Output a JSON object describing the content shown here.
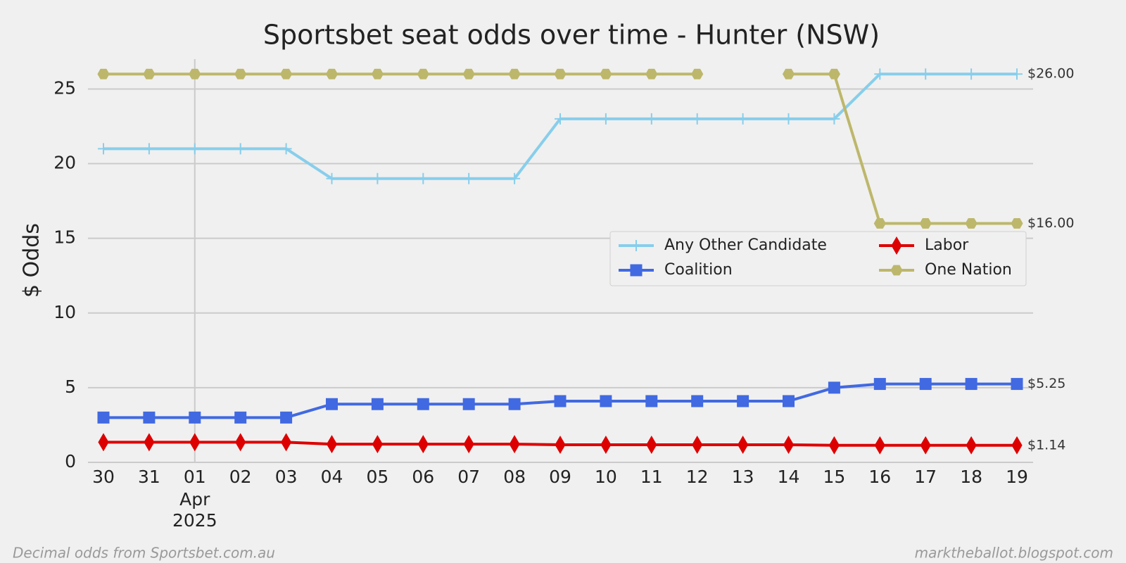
{
  "chart_data": {
    "type": "line",
    "title": "Sportsbet seat odds over time - Hunter (NSW)",
    "y_label": "$ Odds",
    "categories": [
      "30",
      "31",
      "01",
      "02",
      "03",
      "04",
      "05",
      "06",
      "07",
      "08",
      "09",
      "10",
      "11",
      "12",
      "13",
      "14",
      "15",
      "16",
      "17",
      "18",
      "19"
    ],
    "category_sublabels": [
      null,
      null,
      "Apr\n2025",
      null,
      null,
      null,
      null,
      null,
      null,
      null,
      null,
      null,
      null,
      null,
      null,
      null,
      null,
      null,
      null,
      null,
      null
    ],
    "ylim": [
      0,
      27
    ],
    "yticks": [
      0,
      5,
      10,
      15,
      20,
      25
    ],
    "grid": true,
    "legend": "center right",
    "series": [
      {
        "name": "Any Other Candidate",
        "color": "#87ceeb",
        "marker": "plus",
        "values": [
          21,
          21,
          21,
          21,
          21,
          19,
          19,
          19,
          19,
          19,
          23,
          23,
          23,
          23,
          23,
          23,
          23,
          26,
          26,
          26,
          26
        ],
        "value_labels": [
          null,
          null,
          null,
          null,
          null,
          null,
          null,
          null,
          null,
          null,
          null,
          null,
          null,
          null,
          null,
          null,
          null,
          null,
          null,
          null,
          "$26.00"
        ]
      },
      {
        "name": "Coalition",
        "color": "#4169e1",
        "marker": "square",
        "values": [
          3.0,
          3.0,
          3.0,
          3.0,
          3.0,
          3.9,
          3.9,
          3.9,
          3.9,
          3.9,
          4.1,
          4.1,
          4.1,
          4.1,
          4.1,
          4.1,
          5.0,
          5.25,
          5.25,
          5.25,
          5.25
        ],
        "value_labels": [
          null,
          null,
          null,
          null,
          null,
          null,
          null,
          null,
          null,
          null,
          null,
          null,
          null,
          null,
          null,
          null,
          null,
          null,
          null,
          null,
          "$5.25"
        ]
      },
      {
        "name": "Labor",
        "color": "#dd0000",
        "marker": "diamond",
        "values": [
          1.35,
          1.35,
          1.35,
          1.35,
          1.35,
          1.22,
          1.22,
          1.22,
          1.22,
          1.22,
          1.18,
          1.18,
          1.18,
          1.18,
          1.18,
          1.18,
          1.14,
          1.14,
          1.14,
          1.14,
          1.14
        ],
        "value_labels": [
          null,
          null,
          null,
          null,
          null,
          null,
          null,
          null,
          null,
          null,
          null,
          null,
          null,
          null,
          null,
          null,
          null,
          null,
          null,
          null,
          "$1.14"
        ]
      },
      {
        "name": "One Nation",
        "color": "#bdb76b",
        "marker": "hexagon",
        "values": [
          26,
          26,
          26,
          26,
          26,
          26,
          26,
          26,
          26,
          26,
          26,
          26,
          26,
          26,
          null,
          26,
          26,
          16,
          16,
          16,
          16
        ],
        "value_labels": [
          null,
          null,
          null,
          null,
          null,
          null,
          null,
          null,
          null,
          null,
          null,
          null,
          null,
          null,
          null,
          null,
          null,
          null,
          null,
          null,
          "$16.00"
        ]
      }
    ],
    "footer_left": "Decimal odds from Sportsbet.com.au",
    "footer_right": "marktheballot.blogspot.com"
  }
}
